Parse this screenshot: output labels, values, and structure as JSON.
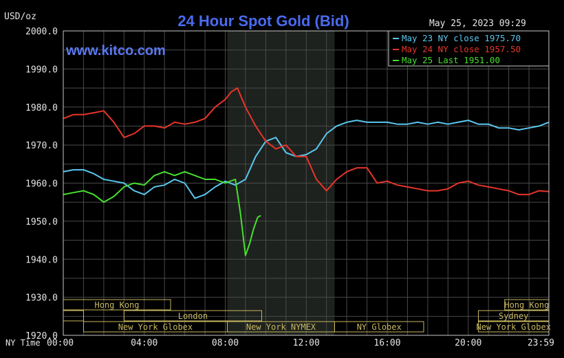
{
  "chart_data": {
    "type": "line",
    "title": "24 Hour Spot Gold (Bid)",
    "unit_label": "USD/oz",
    "timestamp": "May 25, 2023 09:29",
    "watermark": "www.kitco.com",
    "x_axis_prefix": "NY Time",
    "x_tick_labels": [
      "00:00",
      "04:00",
      "08:00",
      "12:00",
      "16:00",
      "20:00",
      "23:59"
    ],
    "x_ticks": [
      0,
      4,
      8,
      12,
      16,
      20,
      23.983
    ],
    "xlim": [
      0,
      23.983
    ],
    "y_tick_labels": [
      "2000.0",
      "1990.0",
      "1980.0",
      "1970.0",
      "1960.0",
      "1950.0",
      "1940.0",
      "1930.0",
      "1920.0"
    ],
    "ylim": [
      1920,
      2000
    ],
    "grid": true,
    "highlight_band": {
      "x": [
        8.1,
        13.4
      ]
    },
    "legend_position": "top-right",
    "series": [
      {
        "name": "May 23 NY close 1975.70",
        "color": "#5ac8f0",
        "x": [
          0,
          0.5,
          1,
          1.5,
          2,
          2.5,
          3,
          3.5,
          4,
          4.5,
          5,
          5.5,
          6,
          6.5,
          7,
          7.5,
          8,
          8.5,
          9,
          9.5,
          10,
          10.5,
          11,
          11.5,
          12,
          12.5,
          13,
          13.5,
          14,
          14.5,
          15,
          15.5,
          16,
          16.5,
          17,
          17.5,
          18,
          18.5,
          19,
          19.5,
          20,
          20.5,
          21,
          21.5,
          22,
          22.5,
          23,
          23.5,
          23.983
        ],
        "y": [
          1963,
          1963.5,
          1963.5,
          1962.5,
          1961,
          1960.5,
          1960,
          1958,
          1957,
          1959,
          1959.5,
          1961,
          1960,
          1956,
          1957,
          1959,
          1960.5,
          1959.5,
          1961,
          1967,
          1971,
          1972,
          1968,
          1967,
          1967.5,
          1969,
          1973,
          1975,
          1976,
          1976.5,
          1976,
          1976,
          1976,
          1975.5,
          1975.5,
          1976,
          1975.5,
          1976,
          1975.5,
          1976,
          1976.5,
          1975.5,
          1975.5,
          1974.5,
          1974.5,
          1974,
          1974.5,
          1975,
          1976
        ]
      },
      {
        "name": "May 24 NY close 1957.50",
        "color": "#e8352a",
        "x": [
          0,
          0.5,
          1,
          1.5,
          2,
          2.5,
          3,
          3.5,
          4,
          4.5,
          5,
          5.5,
          6,
          6.5,
          7,
          7.5,
          8,
          8.3,
          8.6,
          9,
          9.5,
          10,
          10.5,
          11,
          11.5,
          12,
          12.5,
          13,
          13.5,
          14,
          14.5,
          15,
          15.5,
          16,
          16.5,
          17,
          17.5,
          18,
          18.5,
          19,
          19.5,
          20,
          20.5,
          21,
          21.5,
          22,
          22.5,
          23,
          23.5,
          23.983
        ],
        "y": [
          1977,
          1978,
          1978,
          1978.5,
          1979,
          1976,
          1972,
          1973,
          1975,
          1975,
          1974.5,
          1976,
          1975.5,
          1976,
          1977,
          1980,
          1982,
          1984,
          1985,
          1980,
          1975,
          1971,
          1969,
          1970,
          1967,
          1967,
          1961,
          1958,
          1961,
          1963,
          1964,
          1964,
          1960,
          1960.5,
          1959.5,
          1959,
          1958.5,
          1958,
          1958,
          1958.5,
          1960,
          1960.5,
          1959.5,
          1959,
          1958.5,
          1958,
          1957,
          1957,
          1958,
          1957.8
        ]
      },
      {
        "name": "May 25 Last 1951.00",
        "color": "#48e030",
        "x": [
          0,
          0.5,
          1,
          1.5,
          2,
          2.5,
          3,
          3.5,
          4,
          4.5,
          5,
          5.5,
          6,
          6.5,
          7,
          7.5,
          8,
          8.5,
          8.75,
          9,
          9.2,
          9.4,
          9.6,
          9.75
        ],
        "y": [
          1957,
          1957.5,
          1958,
          1957,
          1955,
          1956.5,
          1959,
          1960,
          1959.5,
          1962,
          1963,
          1962,
          1963,
          1962,
          1961,
          1961,
          1960,
          1961,
          1952,
          1941,
          1944,
          1948,
          1951,
          1951.5
        ]
      }
    ],
    "sessions": [
      {
        "label": "Hong Kong",
        "start": 0,
        "end": 5.3,
        "row": 0
      },
      {
        "label": "Hong Kong",
        "start": 21.8,
        "end": 23.983,
        "row": 0
      },
      {
        "label": "",
        "start": 0,
        "end": 1,
        "row": 1
      },
      {
        "label": "London",
        "start": 3,
        "end": 9.8,
        "row": 1
      },
      {
        "label": "Sydney",
        "start": 20.5,
        "end": 23.983,
        "row": 1
      },
      {
        "label": "New York Globex",
        "start": 1,
        "end": 8.1,
        "row": 2
      },
      {
        "label": "New York NYMEX",
        "start": 8.1,
        "end": 13.4,
        "row": 2
      },
      {
        "label": "NY Globex",
        "start": 13.4,
        "end": 17.8,
        "row": 2
      },
      {
        "label": "New York Globex",
        "start": 20.5,
        "end": 23.983,
        "row": 2
      }
    ]
  }
}
